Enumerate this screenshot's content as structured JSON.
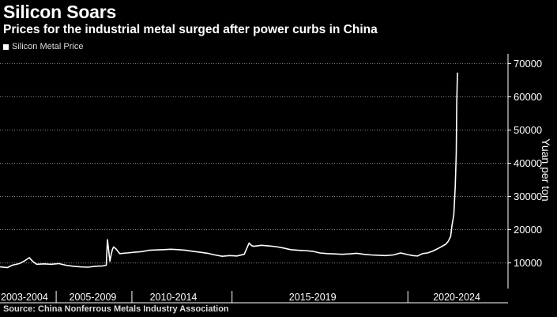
{
  "header": {
    "title": "Silicon Soars",
    "subtitle": "Prices for the industrial metal surged after power curbs in China"
  },
  "legend": {
    "label": "Silicon Metal Price"
  },
  "source": "Source: China Nonferrous Metals Industry Association",
  "colors": {
    "background": "#000000",
    "line": "#ffffff",
    "grid": "#8a8a8a"
  },
  "chart_data": {
    "type": "line",
    "title": "Silicon Soars",
    "subtitle": "Prices for the industrial metal surged after power curbs in China",
    "ylabel": "Yuan per ton",
    "xlabel": "",
    "y_axis_side": "right",
    "ylim": [
      3000,
      72000
    ],
    "yticks": [
      10000,
      20000,
      30000,
      40000,
      50000,
      60000,
      70000
    ],
    "ytick_labels": [
      "10000",
      "20000",
      "30000",
      "40000",
      "50000",
      "60000",
      "70000"
    ],
    "xlim": [
      2001.5,
      2022.3
    ],
    "x_period_labels": [
      {
        "label": "2003-2004",
        "center": 2002.5
      },
      {
        "label": "2005-2009",
        "center": 2005.3
      },
      {
        "label": "2010-2014",
        "center": 2008.6
      },
      {
        "label": "2015-2019",
        "center": 2014.3
      },
      {
        "label": "2020-2024",
        "center": 2020.2
      }
    ],
    "x_period_dividers": [
      2003.8,
      2006.9,
      2011.0,
      2018.2
    ],
    "grid": "horizontal dotted",
    "series": [
      {
        "name": "Silicon Metal Price",
        "x": [
          2001.5,
          2001.8,
          2002.0,
          2002.3,
          2002.5,
          2002.7,
          2002.85,
          2003.0,
          2003.3,
          2003.6,
          2003.9,
          2004.2,
          2004.5,
          2004.8,
          2005.1,
          2005.4,
          2005.7,
          2005.85,
          2005.9,
          2006.0,
          2006.05,
          2006.1,
          2006.15,
          2006.25,
          2006.4,
          2006.7,
          2007.0,
          2007.3,
          2007.6,
          2007.9,
          2008.2,
          2008.5,
          2008.8,
          2009.1,
          2009.4,
          2009.7,
          2010.0,
          2010.3,
          2010.6,
          2010.9,
          2011.2,
          2011.5,
          2011.7,
          2011.8,
          2011.9,
          2012.2,
          2012.5,
          2012.8,
          2013.1,
          2013.4,
          2013.7,
          2014.0,
          2014.3,
          2014.6,
          2014.9,
          2015.2,
          2015.5,
          2015.8,
          2016.1,
          2016.4,
          2016.7,
          2017.0,
          2017.3,
          2017.6,
          2017.9,
          2018.2,
          2018.4,
          2018.6,
          2018.8,
          2019.0,
          2019.2,
          2019.4,
          2019.6,
          2019.75,
          2019.85,
          2019.95,
          2020.0,
          2020.08,
          2020.14,
          2020.18,
          2020.2,
          2020.23
        ],
        "y": [
          8800,
          8600,
          9300,
          9800,
          10600,
          11600,
          10400,
          9600,
          9700,
          9600,
          9800,
          9300,
          9000,
          8800,
          8700,
          9000,
          9100,
          9300,
          17000,
          10500,
          12500,
          14000,
          14800,
          14200,
          12800,
          13000,
          13200,
          13400,
          13800,
          13900,
          14000,
          14100,
          14000,
          13800,
          13500,
          13200,
          12900,
          12400,
          12000,
          12200,
          12100,
          12600,
          16000,
          15200,
          15000,
          15300,
          15100,
          14900,
          14500,
          14000,
          13800,
          13700,
          13500,
          13000,
          12800,
          12700,
          12600,
          12700,
          12900,
          12600,
          12400,
          12300,
          12200,
          12400,
          13000,
          12500,
          12200,
          12100,
          12800,
          13000,
          13500,
          14200,
          15000,
          15600,
          16500,
          18000,
          21000,
          24500,
          33000,
          43000,
          58000,
          67300
        ]
      }
    ]
  }
}
